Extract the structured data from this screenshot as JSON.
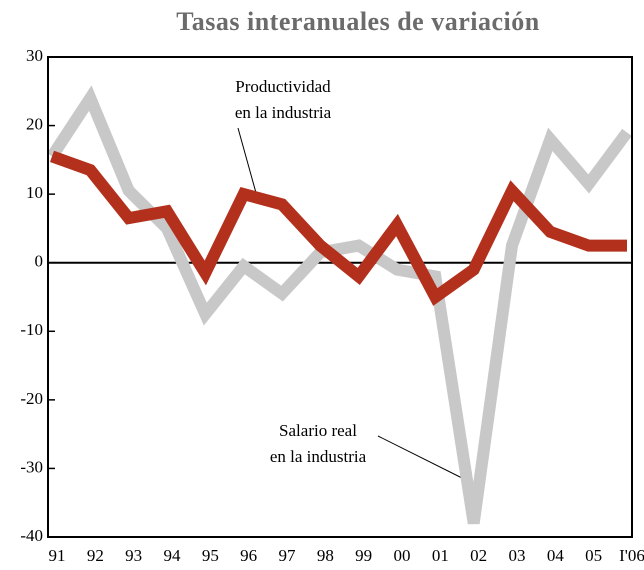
{
  "chart_data": {
    "type": "line",
    "title": "Tasas interanuales de variación",
    "categories": [
      "91",
      "92",
      "93",
      "94",
      "95",
      "96",
      "97",
      "98",
      "99",
      "00",
      "01",
      "02",
      "03",
      "04",
      "05",
      "I'06"
    ],
    "series": [
      {
        "color": "#c8c8c8",
        "values": [
          15.5,
          24,
          10.5,
          5,
          -7.5,
          -0.5,
          -4.5,
          1.5,
          2.5,
          -1,
          -2,
          -38,
          2.5,
          18,
          11.5,
          19
        ]
      },
      {
        "color": "#b3301c",
        "values": [
          15.5,
          13.5,
          6.5,
          7.5,
          -1.5,
          10,
          8.5,
          2.5,
          -2,
          5.5,
          -5,
          -1,
          10.5,
          4.5,
          2.5,
          2.5
        ]
      }
    ],
    "ylim": [
      -40,
      30
    ],
    "yticks": [
      -40,
      -30,
      -20,
      -10,
      0,
      10,
      20,
      30
    ],
    "annotations": [
      {
        "text": [
          "Productividad",
          "en la industria"
        ]
      },
      {
        "text": [
          "Salario real",
          "en la industria"
        ]
      }
    ]
  }
}
